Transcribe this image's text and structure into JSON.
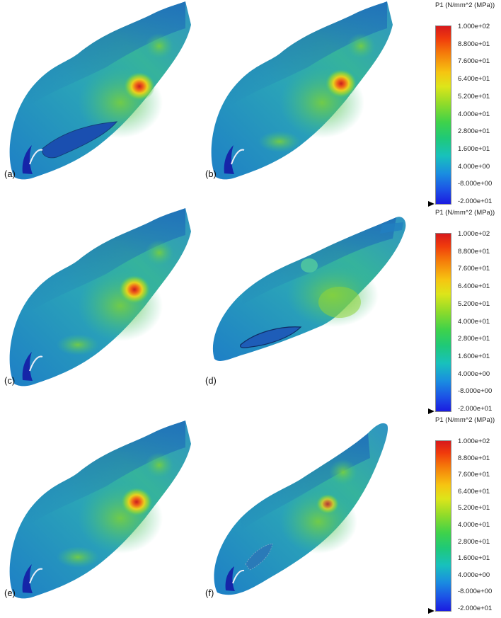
{
  "panels": [
    {
      "label": "(a)",
      "feature": "cavity-large"
    },
    {
      "label": "(b)",
      "feature": "none"
    },
    {
      "label": "(c)",
      "feature": "none"
    },
    {
      "label": "(d)",
      "feature": "cavity-outline"
    },
    {
      "label": "(e)",
      "feature": "none"
    },
    {
      "label": "(f)",
      "feature": "mesh-patch"
    }
  ],
  "legend": {
    "title": "P1 (N/mm^2 (MPa))",
    "ticks": [
      "1.000e+02",
      "8.800e+01",
      "7.600e+01",
      "6.400e+01",
      "5.200e+01",
      "4.000e+01",
      "2.800e+01",
      "1.600e+01",
      "4.000e+00",
      "-8.000e+00",
      "-2.000e+01"
    ],
    "range": [
      -20,
      100
    ],
    "colors": {
      "max": "#d7191c",
      "mid": "#3fd24a",
      "min": "#1b1be0"
    }
  }
}
